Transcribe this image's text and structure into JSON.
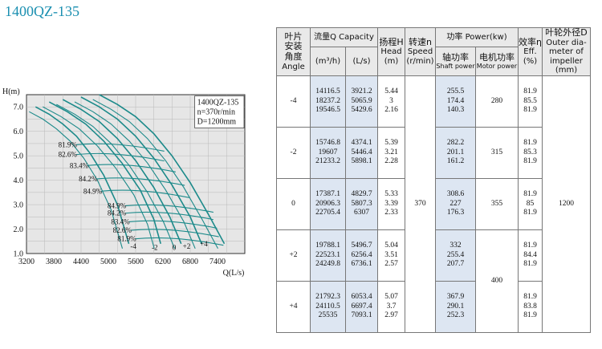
{
  "title": "1400QZ-135",
  "chart_data": {
    "type": "line",
    "ylabel": "H(m)",
    "xlabel": "Q(L/s)",
    "ylim": [
      1.0,
      7.5
    ],
    "xlim": [
      3200,
      8000
    ],
    "yticks": [
      "1.0",
      "2.0",
      "3.0",
      "4.0",
      "5.0",
      "6.0",
      "7.0"
    ],
    "xticks": [
      "3200",
      "3800",
      "4400",
      "5000",
      "5600",
      "6200",
      "6800",
      "7400"
    ],
    "info": [
      "1400QZ-135",
      "n=370r/min",
      "D=1200mm"
    ],
    "grid": true,
    "line_color": "#1c8a8a",
    "series": [
      {
        "name": "-4",
        "x": [
          3400,
          3700,
          4000,
          4300,
          4600,
          4900,
          5200,
          5450
        ],
        "y": [
          7.0,
          6.7,
          6.3,
          5.8,
          5.1,
          4.2,
          3.0,
          1.4
        ]
      },
      {
        "name": "-2",
        "x": [
          3700,
          4100,
          4500,
          4900,
          5300,
          5700,
          6000,
          6150
        ],
        "y": [
          7.2,
          6.8,
          6.3,
          5.6,
          4.7,
          3.6,
          2.4,
          1.4
        ]
      },
      {
        "name": "0",
        "x": [
          4000,
          4400,
          4800,
          5200,
          5600,
          6000,
          6350,
          6600
        ],
        "y": [
          7.3,
          6.9,
          6.4,
          5.7,
          4.8,
          3.7,
          2.5,
          1.4
        ]
      },
      {
        "name": "+2",
        "x": [
          4400,
          4800,
          5200,
          5600,
          6000,
          6400,
          6800,
          7050
        ],
        "y": [
          7.4,
          7.0,
          6.5,
          5.8,
          4.9,
          3.8,
          2.5,
          1.4
        ]
      },
      {
        "name": "+4",
        "x": [
          4800,
          5200,
          5600,
          6000,
          6400,
          6800,
          7200,
          7550
        ],
        "y": [
          7.5,
          7.1,
          6.6,
          5.9,
          5.0,
          3.9,
          2.6,
          1.4
        ]
      }
    ],
    "efficiency_labels": [
      "81.9%",
      "82.6%",
      "83.4%",
      "84.2%",
      "84.9%",
      "84.9%",
      "84.2%",
      "83.4%",
      "82.6%",
      "81.9%"
    ],
    "efficiency_label_points": [
      [
        3900,
        5.45
      ],
      [
        3900,
        5.05
      ],
      [
        4150,
        4.6
      ],
      [
        4350,
        4.05
      ],
      [
        4450,
        3.55
      ],
      [
        4980,
        2.95
      ],
      [
        4980,
        2.65
      ],
      [
        5060,
        2.3
      ],
      [
        5100,
        1.95
      ],
      [
        5200,
        1.6
      ]
    ],
    "angle_labels": [
      "-4",
      "-2",
      "0",
      "+2",
      "+4"
    ],
    "angle_label_points": [
      [
        5550,
        1.3
      ],
      [
        6020,
        1.25
      ],
      [
        6450,
        1.25
      ],
      [
        6720,
        1.3
      ],
      [
        7100,
        1.4
      ]
    ]
  },
  "table": {
    "headers": {
      "angle_cn": [
        "叶片",
        "安装",
        "角度"
      ],
      "angle_en": "Angle",
      "capacity_cn": "流量Q Capacity",
      "capacity_unit_m3h": "(m³/h)",
      "capacity_unit_ls": "(L/s)",
      "head_cn": "扬程H",
      "head_en": "Head",
      "head_unit": "(m)",
      "speed_cn": "转速n",
      "speed_en": "Speed",
      "speed_unit": "(r/min)",
      "power_cn": "功率 Power(kw)",
      "shaft_cn": "轴功率",
      "shaft_en": "Shaft power",
      "motor_cn": "电机功率",
      "motor_en": "Motor power",
      "eff_cn": "效率η",
      "eff_en": "Eff.",
      "eff_unit": "(%)",
      "dia_cn": "叶轮外径D",
      "dia_en": "Outer dia-meter of impeller",
      "dia_unit": "(mm)"
    },
    "speed": "370",
    "diameter": "1200",
    "groups": [
      {
        "angle": "-4",
        "m3h": [
          "14116.5",
          "18237.2",
          "19546.5"
        ],
        "ls": [
          "3921.2",
          "5065.9",
          "5429.6"
        ],
        "head": [
          "5.44",
          "3",
          "2.16"
        ],
        "shaft": [
          "255.5",
          "174.4",
          "140.3"
        ],
        "motor": "280",
        "eff": [
          "81.9",
          "85.5",
          "81.9"
        ]
      },
      {
        "angle": "-2",
        "m3h": [
          "15746.8",
          "19607",
          "21233.2"
        ],
        "ls": [
          "4374.1",
          "5446.4",
          "5898.1"
        ],
        "head": [
          "5.39",
          "3.21",
          "2.28"
        ],
        "shaft": [
          "282.2",
          "201.1",
          "161.2"
        ],
        "motor": "315",
        "eff": [
          "81.9",
          "85.3",
          "81.9"
        ]
      },
      {
        "angle": "0",
        "m3h": [
          "17387.1",
          "20906.3",
          "22705.4"
        ],
        "ls": [
          "4829.7",
          "5807.3",
          "6307"
        ],
        "head": [
          "5.33",
          "3.39",
          "2.33"
        ],
        "shaft": [
          "308.6",
          "227",
          "176.3"
        ],
        "motor": "355",
        "eff": [
          "81.9",
          "85",
          "81.9"
        ]
      },
      {
        "angle": "+2",
        "m3h": [
          "19788.1",
          "22523.1",
          "24249.8"
        ],
        "ls": [
          "5496.7",
          "6256.4",
          "6736.1"
        ],
        "head": [
          "5.04",
          "3.51",
          "2.57"
        ],
        "shaft": [
          "332",
          "255.4",
          "207.7"
        ],
        "motor": "400",
        "eff": [
          "81.9",
          "84.4",
          "81.9"
        ]
      },
      {
        "angle": "+4",
        "m3h": [
          "21792.3",
          "24110.5",
          "25535"
        ],
        "ls": [
          "6053.4",
          "6697.4",
          "7093.1"
        ],
        "head": [
          "5.07",
          "3.7",
          "2.97"
        ],
        "shaft": [
          "367.9",
          "290.1",
          "252.3"
        ],
        "motor": "",
        "eff": [
          "81.9",
          "83.8",
          "81.9"
        ]
      }
    ]
  }
}
